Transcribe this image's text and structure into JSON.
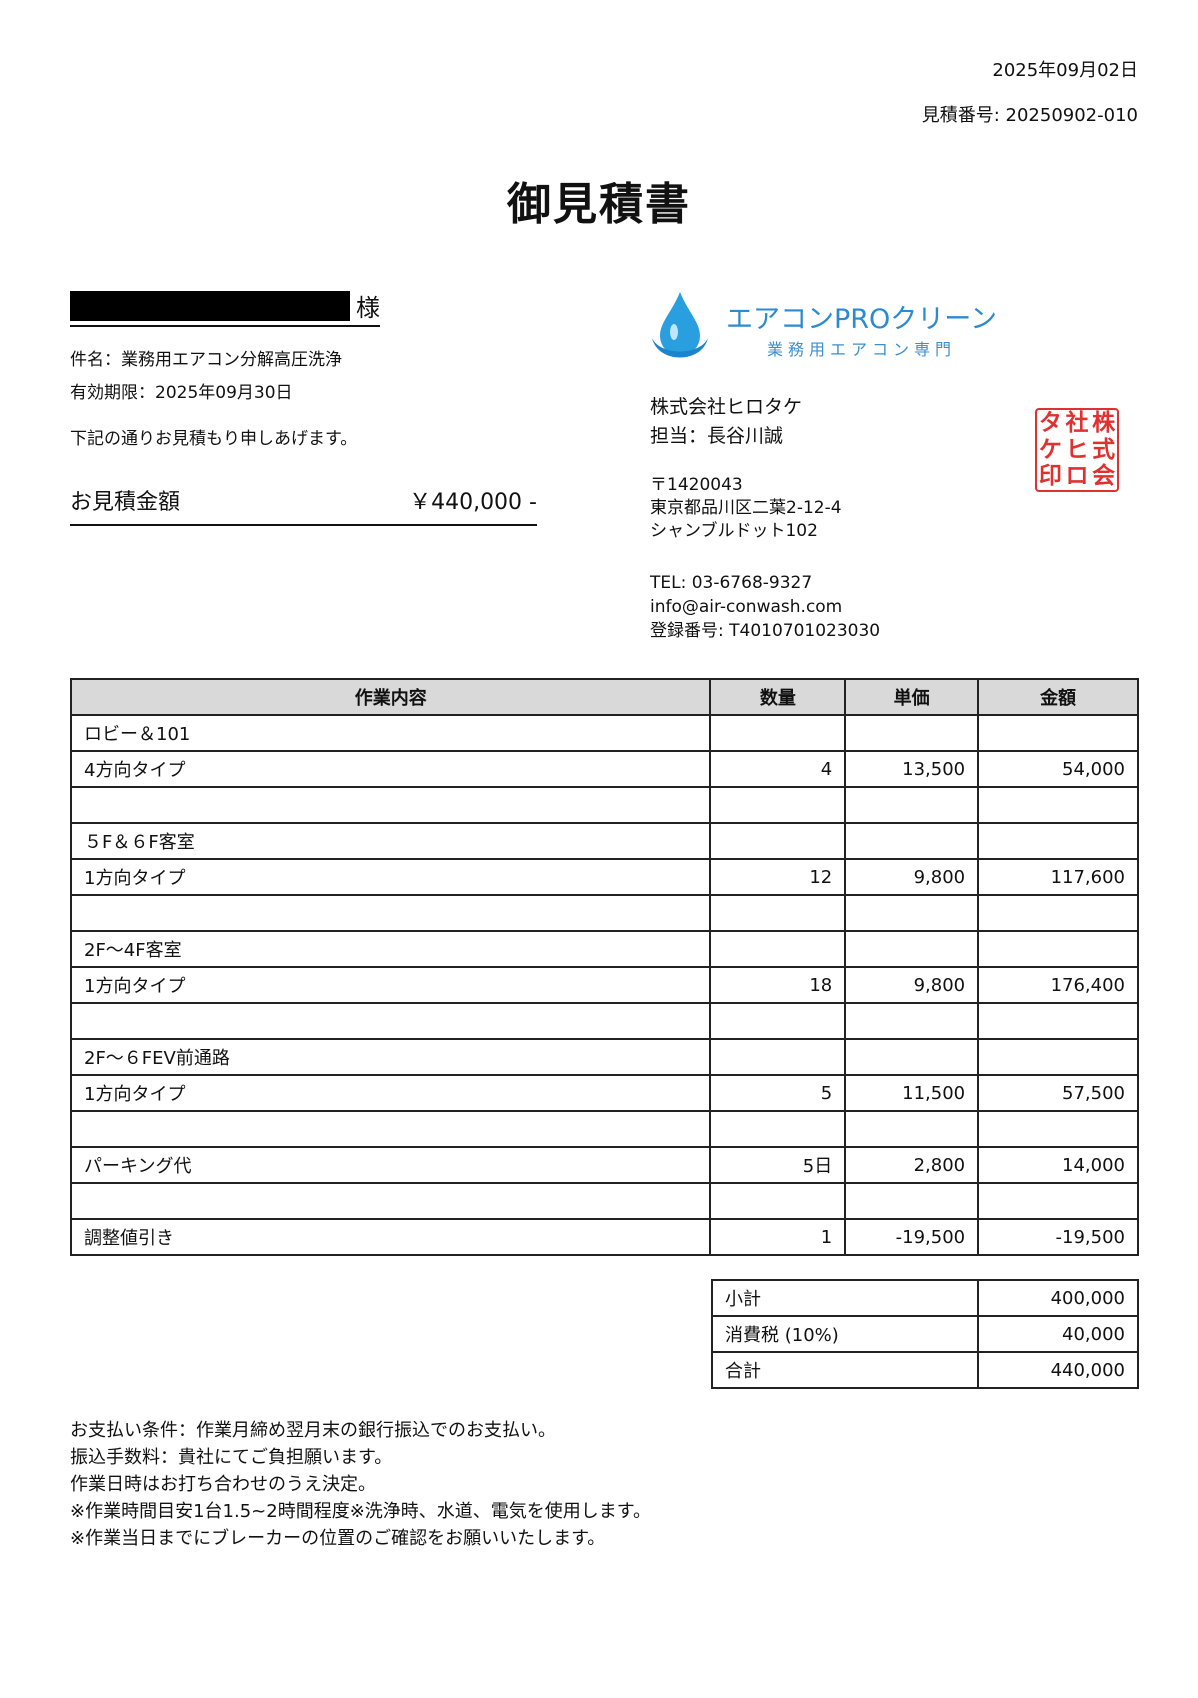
{
  "header": {
    "date": "2025年09月02日",
    "quote_number": "見積番号: 20250902-010",
    "title": "御見積書"
  },
  "customer": {
    "honorific": "様"
  },
  "info": {
    "subject": "件名：業務用エアコン分解高圧洗浄",
    "valid_until": "有効期限：2025年09月30日",
    "greeting": "下記の通りお見積もり申しあげます。"
  },
  "amount": {
    "label": "お見積金額",
    "value": "￥440,000 -"
  },
  "logo": {
    "name": "エアコンPROクリーン",
    "tagline": "業務用エアコン専門",
    "icon": "water-drop-icon",
    "color": "#2b8bd0"
  },
  "company": {
    "name": "株式会社ヒロタケ",
    "contact": "担当：長谷川誠",
    "postal": "〒1420043",
    "address1": "東京都品川区二葉2-12-4",
    "address2": "シャンブルドット102",
    "tel": "TEL: 03-6768-9327",
    "email": "info@air-conwash.com",
    "registration": "登録番号: T4010701023030"
  },
  "seal": {
    "text": [
      "株",
      "式",
      "会",
      "社",
      "ヒ",
      "ロ",
      "タ",
      "ケ",
      "印"
    ],
    "color": "#e03030"
  },
  "table": {
    "headers": [
      "作業内容",
      "数量",
      "単価",
      "金額"
    ],
    "rows": [
      [
        "ロビー＆101",
        "",
        "",
        ""
      ],
      [
        "4方向タイプ",
        "4",
        "13,500",
        "54,000"
      ],
      [
        "",
        "",
        "",
        ""
      ],
      [
        "５F＆６F客室",
        "",
        "",
        ""
      ],
      [
        "1方向タイプ",
        "12",
        "9,800",
        "117,600"
      ],
      [
        "",
        "",
        "",
        ""
      ],
      [
        "2F～4F客室",
        "",
        "",
        ""
      ],
      [
        "1方向タイプ",
        "18",
        "9,800",
        "176,400"
      ],
      [
        "",
        "",
        "",
        ""
      ],
      [
        "2F～６FEV前通路",
        "",
        "",
        ""
      ],
      [
        "1方向タイプ",
        "5",
        "11,500",
        "57,500"
      ],
      [
        "",
        "",
        "",
        ""
      ],
      [
        "パーキング代",
        "5日",
        "2,800",
        "14,000"
      ],
      [
        "",
        "",
        "",
        ""
      ],
      [
        "調整値引き",
        "1",
        "-19,500",
        "-19,500"
      ]
    ]
  },
  "summary": [
    [
      "小計",
      "400,000"
    ],
    [
      "消費税 (10%)",
      "40,000"
    ],
    [
      "合計",
      "440,000"
    ]
  ],
  "notes": [
    "お支払い条件：作業月締め翌月末の銀行振込でのお支払い。",
    "振込手数料：貴社にてご負担願います。",
    "作業日時はお打ち合わせのうえ決定。",
    "※作業時間目安1台1.5~2時間程度※洗浄時、水道、電気を使用します。",
    "※作業当日までにブレーカーの位置のご確認をお願いいたします。"
  ]
}
